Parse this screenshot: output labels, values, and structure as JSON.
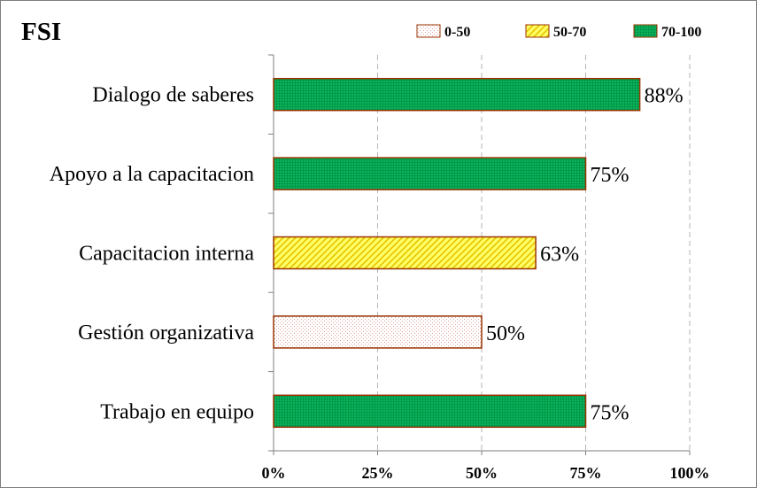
{
  "chart_data": {
    "type": "bar",
    "orientation": "horizontal",
    "title": "FSI",
    "categories": [
      "Dialogo de saberes",
      "Apoyo a la capacitacion",
      "Capacitacion interna",
      "Gestión organizativa",
      "Trabajo en equipo"
    ],
    "values": [
      88,
      75,
      63,
      50,
      75
    ],
    "value_labels": [
      "88%",
      "75%",
      "63%",
      "50%",
      "75%"
    ],
    "bar_class": [
      "70-100",
      "70-100",
      "50-70",
      "0-50",
      "70-100"
    ],
    "xlim": [
      0,
      100
    ],
    "xticks": [
      0,
      25,
      50,
      75,
      100
    ],
    "xtick_labels": [
      "0%",
      "25%",
      "50%",
      "75%",
      "100%"
    ],
    "grid": "vertical dashed",
    "legend_position": "top-right",
    "legend": [
      {
        "label": "0-50",
        "key": "0-50",
        "fill": "#f2dcdb",
        "pattern": "dots"
      },
      {
        "label": "50-70",
        "key": "50-70",
        "fill": "#ffff66",
        "pattern": "diagonal"
      },
      {
        "label": "70-100",
        "key": "70-100",
        "fill": "#00a651",
        "pattern": "dense-dots"
      }
    ],
    "bar_outline": "#993300"
  }
}
